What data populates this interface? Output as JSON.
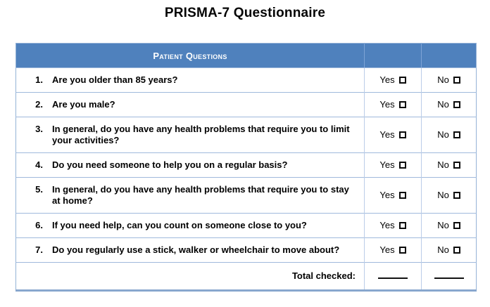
{
  "title": "PRISMA-7 Questionnaire",
  "labels": {
    "yes": "Yes",
    "no": "No"
  },
  "table": {
    "header": "Patient Questions",
    "questions": [
      {
        "num": "1.",
        "text": "Are you older than 85 years?"
      },
      {
        "num": "2.",
        "text": "Are you male?"
      },
      {
        "num": "3.",
        "text": "In general, do you have any health problems that require you to limit your activities?"
      },
      {
        "num": "4.",
        "text": "Do you need someone to help you on a regular basis?"
      },
      {
        "num": "5.",
        "text": "In general, do you have any health problems that require you to stay at home?"
      },
      {
        "num": "6.",
        "text": "If you need help, can you count on someone close to you?"
      },
      {
        "num": "7.",
        "text": "Do you regularly use a stick, walker or wheelchair to move about?"
      }
    ],
    "footer": {
      "label": "Total checked:"
    }
  },
  "colors": {
    "header_bg": "#4F81BD",
    "header_text": "#FFFFFF",
    "grid_line": "#9FB9DC",
    "outer_border": "#95B3D7",
    "bottom_border": "#88A7CE",
    "text": "#000000"
  }
}
